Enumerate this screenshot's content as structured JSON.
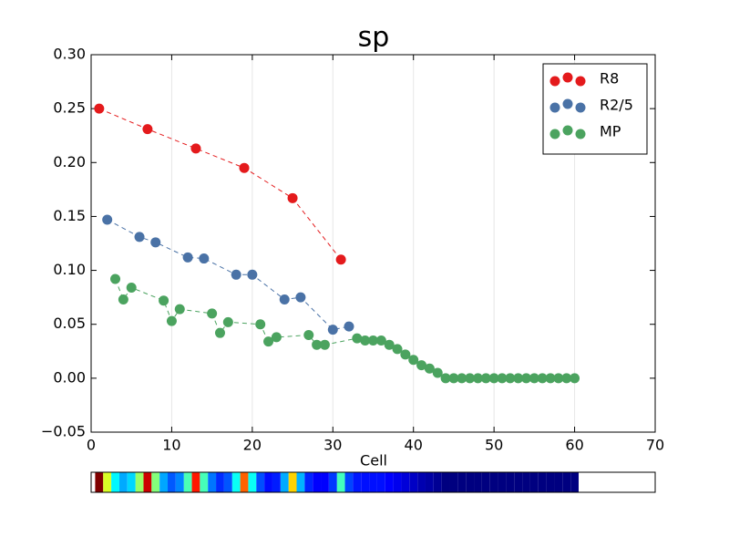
{
  "chart_data": {
    "type": "line",
    "title": "sp",
    "x_label": "Cell",
    "xlim": [
      0,
      70
    ],
    "xticks": [
      0,
      10,
      20,
      30,
      40,
      50,
      60,
      70
    ],
    "ylim": [
      -0.05,
      0.3
    ],
    "yticks": [
      {
        "value": -0.05,
        "label": "−0.05"
      },
      {
        "value": 0,
        "label": "0.00"
      },
      0.05,
      {
        "value": 0.1,
        "label": "0.10"
      },
      0.15,
      {
        "value": 0.2,
        "label": "0.20"
      },
      0.25,
      {
        "value": 0.3,
        "label": "0.30"
      }
    ],
    "xgrid": true,
    "legend": "upper right",
    "series": [
      {
        "name": "R8",
        "color": "#e41a1c",
        "x": [
          1,
          7,
          13,
          19,
          25,
          31
        ],
        "values": [
          0.25,
          0.231,
          0.213,
          0.195,
          0.167,
          0.11
        ]
      },
      {
        "name": "R2/5",
        "color": "#4a72a6",
        "x": [
          2,
          6,
          8,
          12,
          14,
          18,
          20,
          24,
          26,
          30,
          32
        ],
        "values": [
          0.147,
          0.131,
          0.126,
          0.112,
          0.111,
          0.096,
          0.096,
          0.073,
          0.075,
          0.045,
          0.048
        ]
      },
      {
        "name": "MP",
        "color": "#4ba35f",
        "x": [
          3,
          4,
          5,
          9,
          10,
          11,
          15,
          16,
          17,
          21,
          22,
          23,
          27,
          28,
          29,
          33,
          34,
          35,
          36,
          37,
          38,
          39,
          40,
          41,
          42,
          43,
          44,
          45,
          46,
          47,
          48,
          49,
          50,
          51,
          52,
          53,
          54,
          55,
          56,
          57,
          58,
          59,
          60
        ],
        "values": [
          0.092,
          0.073,
          0.084,
          0.072,
          0.053,
          0.064,
          0.06,
          0.042,
          0.052,
          0.05,
          0.034,
          0.038,
          0.04,
          0.031,
          0.031,
          0.037,
          0.035,
          0.035,
          0.035,
          0.031,
          0.027,
          0.022,
          0.017,
          0.012,
          0.009,
          0.005,
          0,
          0,
          0,
          0,
          0,
          0,
          0,
          0,
          0,
          0,
          0,
          0,
          0,
          0,
          0,
          0,
          0
        ]
      }
    ]
  }
}
